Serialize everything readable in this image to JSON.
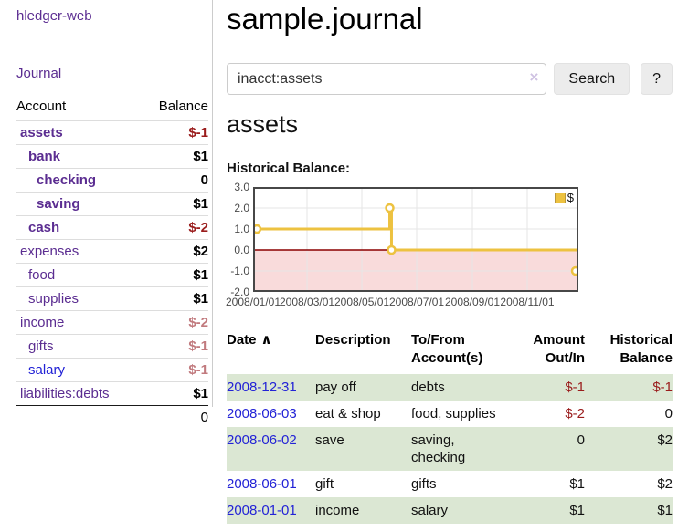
{
  "app_title": "hledger-web",
  "sidebar": {
    "journal_link": "Journal",
    "headers": {
      "account": "Account",
      "balance": "Balance"
    },
    "accounts": [
      {
        "name": "assets",
        "depth": 1,
        "bold": true,
        "link_color": "purple",
        "balance": "$-1",
        "balance_style": "neg"
      },
      {
        "name": "bank",
        "depth": 2,
        "bold": true,
        "link_color": "purple",
        "balance": "$1",
        "balance_style": "pos"
      },
      {
        "name": "checking",
        "depth": 3,
        "bold": true,
        "link_color": "purple",
        "balance": "0",
        "balance_style": "pos"
      },
      {
        "name": "saving",
        "depth": 3,
        "bold": true,
        "link_color": "purple",
        "balance": "$1",
        "balance_style": "pos"
      },
      {
        "name": "cash",
        "depth": 2,
        "bold": true,
        "link_color": "purple",
        "balance": "$-2",
        "balance_style": "neg"
      },
      {
        "name": "expenses",
        "depth": 1,
        "bold": false,
        "link_color": "purple",
        "balance": "$2",
        "balance_style": "pos"
      },
      {
        "name": "food",
        "depth": 2,
        "bold": false,
        "link_color": "purple",
        "balance": "$1",
        "balance_style": "pos"
      },
      {
        "name": "supplies",
        "depth": 2,
        "bold": false,
        "link_color": "purple",
        "balance": "$1",
        "balance_style": "pos"
      },
      {
        "name": "income",
        "depth": 1,
        "bold": false,
        "link_color": "purple",
        "balance": "$-2",
        "balance_style": "neg-soft"
      },
      {
        "name": "gifts",
        "depth": 2,
        "bold": false,
        "link_color": "purple",
        "balance": "$-1",
        "balance_style": "neg-soft"
      },
      {
        "name": "salary",
        "depth": 2,
        "bold": false,
        "link_color": "blue",
        "balance": "$-1",
        "balance_style": "neg-soft"
      },
      {
        "name": "liabilities:debts",
        "depth": 1,
        "bold": false,
        "link_color": "purple",
        "balance": "$1",
        "balance_style": "pos"
      }
    ],
    "total": "0"
  },
  "main": {
    "title": "sample.journal",
    "search": {
      "value": "inacct:assets",
      "clear_icon": "×",
      "search_button": "Search",
      "help_button": "?"
    },
    "account_heading": "assets",
    "section_label": "Historical Balance:"
  },
  "chart_data": {
    "type": "line",
    "step": true,
    "title": "Historical Balance:",
    "series": [
      {
        "name": "$",
        "color": "#edc240",
        "points": [
          {
            "date": "2008-01-01",
            "value": 1
          },
          {
            "date": "2008-06-01",
            "value": 2
          },
          {
            "date": "2008-06-03",
            "value": 0
          },
          {
            "date": "2008-12-31",
            "value": -1
          }
        ]
      }
    ],
    "x_ticks": [
      {
        "label": "2008/01/01",
        "day": 0
      },
      {
        "label": "2008/03/01",
        "day": 60
      },
      {
        "label": "2008/05/01",
        "day": 121
      },
      {
        "label": "2008/07/01",
        "day": 182
      },
      {
        "label": "2008/09/01",
        "day": 244
      },
      {
        "label": "2008/11/01",
        "day": 305
      }
    ],
    "y_ticks": [
      "3.0",
      "2.0",
      "1.0",
      "0.0",
      "-1.0",
      "-2.0"
    ],
    "ylim": [
      -2,
      3
    ],
    "x_range_days": 362,
    "grid": true,
    "legend": {
      "label": "$",
      "position": "top-right"
    },
    "colors": {
      "line": "#edc240",
      "marker_fill": "#ffffff",
      "negative_fill": "#f9dbdb",
      "zero_line": "#8b0000",
      "grid": "#e6e6e6",
      "border": "#474747",
      "tick_text": "#4a4a4a"
    }
  },
  "register": {
    "headers": [
      {
        "label": "Date",
        "sort_icon": "∧",
        "align": "left"
      },
      {
        "label": "Description",
        "align": "left"
      },
      {
        "label": "To/From Account(s)",
        "align": "left"
      },
      {
        "label": "Amount Out/In",
        "align": "right"
      },
      {
        "label": "Historical Balance",
        "align": "right"
      }
    ],
    "rows": [
      {
        "date": "2008-12-31",
        "description": "pay off",
        "accounts": "debts",
        "amount": "$-1",
        "amount_style": "neg",
        "balance": "$-1",
        "balance_style": "neg",
        "shaded": true
      },
      {
        "date": "2008-06-03",
        "description": "eat & shop",
        "accounts": "food, supplies",
        "amount": "$-2",
        "amount_style": "neg",
        "balance": "0",
        "balance_style": "pos",
        "shaded": false
      },
      {
        "date": "2008-06-02",
        "description": "save",
        "accounts": "saving, checking",
        "amount": "0",
        "amount_style": "pos",
        "balance": "$2",
        "balance_style": "pos",
        "shaded": true
      },
      {
        "date": "2008-06-01",
        "description": "gift",
        "accounts": "gifts",
        "amount": "$1",
        "amount_style": "pos",
        "balance": "$2",
        "balance_style": "pos",
        "shaded": false
      },
      {
        "date": "2008-01-01",
        "description": "income",
        "accounts": "salary",
        "amount": "$1",
        "amount_style": "pos",
        "balance": "$1",
        "balance_style": "pos",
        "shaded": true
      }
    ]
  }
}
